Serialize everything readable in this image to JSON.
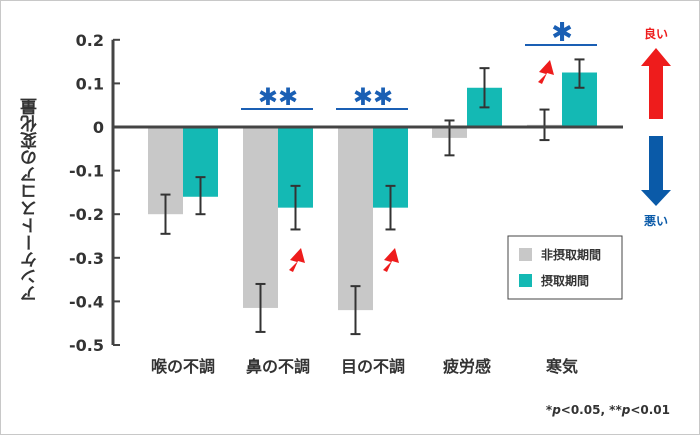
{
  "chart_data": {
    "type": "bar",
    "title": "",
    "xlabel": "",
    "ylabel": "アンケートスコアの変化量",
    "ylim": [
      -0.5,
      0.2
    ],
    "yticks": [
      "0.2",
      "0.1",
      "0",
      "-0.1",
      "-0.2",
      "-0.3",
      "-0.4",
      "-0.5"
    ],
    "categories": [
      "喉の不調",
      "鼻の不調",
      "目の不調",
      "疲労感",
      "寒気"
    ],
    "series": [
      {
        "name": "非摂取期間",
        "color": "#c8c8c8",
        "values": [
          -0.2,
          -0.415,
          -0.42,
          -0.025,
          0.005
        ],
        "err_low": [
          -0.245,
          -0.47,
          -0.475,
          -0.065,
          -0.03
        ],
        "err_high": [
          -0.155,
          -0.36,
          -0.365,
          0.015,
          0.04
        ]
      },
      {
        "name": "摂取期間",
        "color": "#14b9b4",
        "values": [
          -0.16,
          -0.185,
          -0.185,
          0.09,
          0.125
        ],
        "err_low": [
          -0.2,
          -0.235,
          -0.235,
          0.045,
          0.09
        ],
        "err_high": [
          -0.115,
          -0.135,
          -0.135,
          0.135,
          0.155
        ]
      }
    ],
    "significance": [
      {
        "category": "鼻の不調",
        "mark": "**"
      },
      {
        "category": "目の不調",
        "mark": "**"
      },
      {
        "category": "寒気",
        "mark": "*"
      }
    ],
    "legend_position": "lower right",
    "grid": false,
    "annotations": {
      "good": "良い",
      "bad": "悪い",
      "footnote_a": "*",
      "footnote_p1": "p",
      "footnote_b": "<0.05, **",
      "footnote_p2": "p",
      "footnote_c": "<0.01"
    }
  },
  "colors": {
    "gray": "#c8c8c8",
    "teal": "#14b9b4",
    "sig": "#1a5fb4",
    "good": "#ee1c1c",
    "bad": "#0a5aa8",
    "axis": "#444444"
  }
}
